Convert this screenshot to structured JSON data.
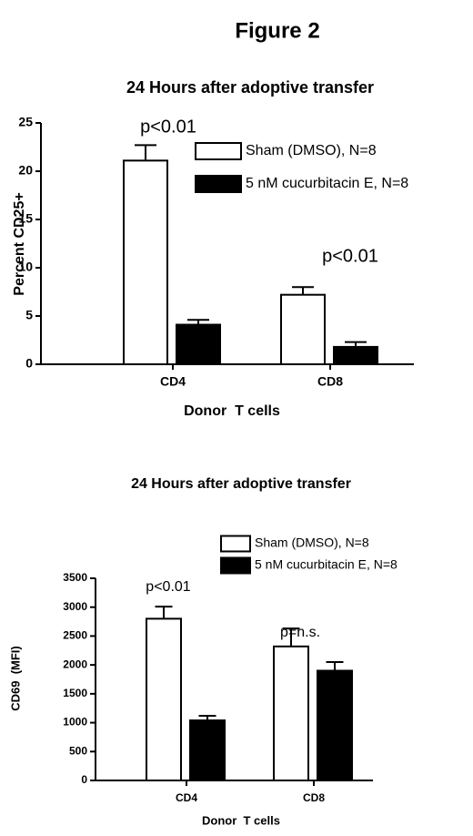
{
  "header": {
    "title": "Figure 2"
  },
  "chart_data": [
    {
      "type": "bar",
      "title": "24 Hours after adoptive transfer",
      "x_label": "Donor  T cells",
      "y_label": "Percent CD25+",
      "categories": [
        "CD4",
        "CD8"
      ],
      "series": [
        {
          "name": "Sham (DMSO), N=8",
          "color": "#ffffff",
          "values": [
            21.1,
            7.2
          ],
          "errors": [
            1.6,
            0.8
          ]
        },
        {
          "name": "5 nM cucurbitacin E, N=8",
          "color": "#000000",
          "values": [
            4.1,
            1.8
          ],
          "errors": [
            0.5,
            0.5
          ]
        }
      ],
      "ylim": [
        0,
        25
      ],
      "yticks": [
        0,
        5,
        10,
        15,
        20,
        25
      ],
      "annotations": [
        "p<0.01",
        "p<0.01"
      ]
    },
    {
      "type": "bar",
      "title": "24 Hours after adoptive transfer",
      "x_label": "Donor  T cells",
      "y_label": "CD69  (MFI)",
      "categories": [
        "CD4",
        "CD8"
      ],
      "series": [
        {
          "name": "Sham (DMSO), N=8",
          "color": "#ffffff",
          "values": [
            2800,
            2320
          ],
          "errors": [
            210,
            310
          ]
        },
        {
          "name": "5 nM cucurbitacin E, N=8",
          "color": "#000000",
          "values": [
            1040,
            1900
          ],
          "errors": [
            80,
            150
          ]
        }
      ],
      "ylim": [
        0,
        3500
      ],
      "yticks": [
        0,
        500,
        1000,
        1500,
        2000,
        2500,
        3000,
        3500
      ],
      "annotations": [
        "p<0.01",
        "p=n.s."
      ]
    }
  ]
}
